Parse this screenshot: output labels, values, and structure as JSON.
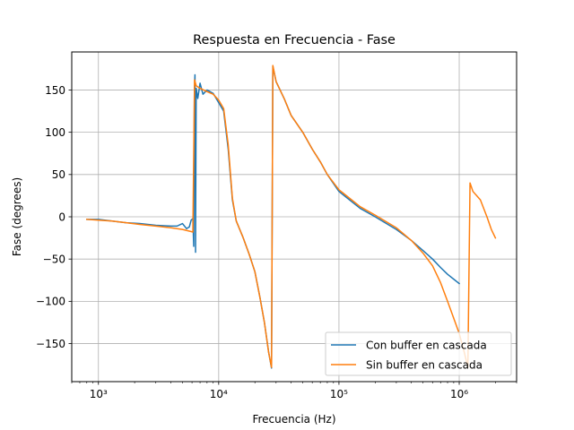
{
  "chart_data": {
    "type": "line",
    "title": "Respuesta en Frecuencia - Fase",
    "xlabel": "Frecuencia (Hz)",
    "ylabel": "Fase (degrees)",
    "xscale": "log",
    "xlim": [
      600,
      3000000
    ],
    "ylim": [
      -195,
      195
    ],
    "grid": true,
    "legend_position": "lower right",
    "x_ticks": [
      {
        "value": 1000,
        "label": "10³"
      },
      {
        "value": 10000,
        "label": "10⁴"
      },
      {
        "value": 100000,
        "label": "10⁵"
      },
      {
        "value": 1000000,
        "label": "10⁶"
      }
    ],
    "y_ticks": [
      -150,
      -100,
      -50,
      0,
      50,
      100,
      150
    ],
    "y_tick_labels": [
      "−150",
      "−100",
      "−50",
      "0",
      "50",
      "100",
      "150"
    ],
    "series": [
      {
        "name": "Con buffer en cascada",
        "color": "#1f77b4",
        "points": [
          [
            800,
            -3
          ],
          [
            1000,
            -3
          ],
          [
            1300,
            -5
          ],
          [
            1700,
            -7
          ],
          [
            2200,
            -8
          ],
          [
            3000,
            -10
          ],
          [
            4000,
            -11
          ],
          [
            4500,
            -11
          ],
          [
            5000,
            -8
          ],
          [
            5400,
            -14
          ],
          [
            5700,
            -12
          ],
          [
            5900,
            -4
          ],
          [
            6100,
            -2
          ],
          [
            6200,
            -35
          ],
          [
            6280,
            150
          ],
          [
            6350,
            168
          ],
          [
            6420,
            -42
          ],
          [
            6500,
            152
          ],
          [
            6700,
            140
          ],
          [
            7000,
            158
          ],
          [
            7400,
            145
          ],
          [
            8000,
            150
          ],
          [
            9000,
            146
          ],
          [
            10000,
            135
          ],
          [
            11000,
            125
          ],
          [
            12000,
            80
          ],
          [
            13000,
            20
          ],
          [
            14000,
            -5
          ],
          [
            16000,
            -25
          ],
          [
            18000,
            -45
          ],
          [
            20000,
            -65
          ],
          [
            22000,
            -95
          ],
          [
            24000,
            -125
          ],
          [
            26000,
            -160
          ],
          [
            27500,
            -179
          ],
          [
            28200,
            178
          ],
          [
            30000,
            160
          ],
          [
            35000,
            140
          ],
          [
            40000,
            120
          ],
          [
            50000,
            100
          ],
          [
            60000,
            80
          ],
          [
            70000,
            65
          ],
          [
            80000,
            50
          ],
          [
            100000,
            30
          ],
          [
            150000,
            10
          ],
          [
            200000,
            0
          ],
          [
            300000,
            -15
          ],
          [
            400000,
            -28
          ],
          [
            500000,
            -40
          ],
          [
            600000,
            -50
          ],
          [
            700000,
            -60
          ],
          [
            800000,
            -68
          ],
          [
            1000000,
            -79
          ]
        ]
      },
      {
        "name": "Sin buffer en cascada",
        "color": "#ff7f0e",
        "points": [
          [
            800,
            -3
          ],
          [
            1000,
            -4
          ],
          [
            1300,
            -5
          ],
          [
            1700,
            -7
          ],
          [
            2200,
            -9
          ],
          [
            3000,
            -11
          ],
          [
            4000,
            -13
          ],
          [
            5000,
            -15
          ],
          [
            5700,
            -17
          ],
          [
            6100,
            -18
          ],
          [
            6300,
            162
          ],
          [
            6500,
            155
          ],
          [
            7000,
            152
          ],
          [
            8000,
            148
          ],
          [
            9000,
            145
          ],
          [
            10000,
            138
          ],
          [
            11000,
            128
          ],
          [
            12000,
            85
          ],
          [
            13000,
            22
          ],
          [
            14000,
            -5
          ],
          [
            16000,
            -25
          ],
          [
            18000,
            -45
          ],
          [
            20000,
            -65
          ],
          [
            22000,
            -95
          ],
          [
            24000,
            -125
          ],
          [
            26000,
            -160
          ],
          [
            27500,
            -178
          ],
          [
            28200,
            179
          ],
          [
            30000,
            160
          ],
          [
            35000,
            140
          ],
          [
            40000,
            120
          ],
          [
            50000,
            100
          ],
          [
            60000,
            80
          ],
          [
            70000,
            65
          ],
          [
            80000,
            50
          ],
          [
            100000,
            32
          ],
          [
            150000,
            12
          ],
          [
            200000,
            2
          ],
          [
            300000,
            -13
          ],
          [
            400000,
            -28
          ],
          [
            500000,
            -43
          ],
          [
            600000,
            -58
          ],
          [
            700000,
            -78
          ],
          [
            800000,
            -100
          ],
          [
            900000,
            -120
          ],
          [
            1000000,
            -138
          ],
          [
            1100000,
            -160
          ],
          [
            1180000,
            -178
          ],
          [
            1230000,
            40
          ],
          [
            1300000,
            30
          ],
          [
            1500000,
            20
          ],
          [
            1700000,
            0
          ],
          [
            1850000,
            -15
          ],
          [
            2000000,
            -25
          ]
        ]
      }
    ]
  }
}
